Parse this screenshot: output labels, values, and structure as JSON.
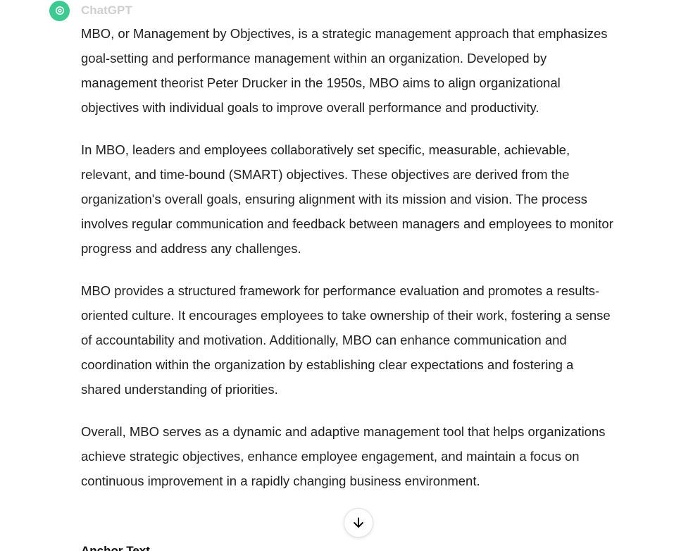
{
  "header": {
    "author": "ChatGPT",
    "avatar_icon": "openai-logo-icon",
    "avatar_color": "#19c37d"
  },
  "message": {
    "paragraphs": [
      "MBO, or Management by Objectives, is a strategic management approach that emphasizes goal-setting and performance management within an organization. Developed by management theorist Peter Drucker in the 1950s, MBO aims to align organizational objectives with individual goals to improve overall performance and productivity.",
      "In MBO, leaders and employees collaboratively set specific, measurable, achievable, relevant, and time-bound (SMART) objectives. These objectives are derived from the organization's overall goals, ensuring alignment with its mission and vision. The process involves regular communication and feedback between managers and employees to monitor progress and address any challenges.",
      "MBO provides a structured framework for performance evaluation and promotes a results-oriented culture. It encourages employees to take ownership of their work, fostering a sense of accountability and motivation. Additionally, MBO can enhance communication and coordination within the organization by establishing clear expectations and fostering a shared understanding of priorities.",
      "Overall, MBO serves as a dynamic and adaptive management tool that helps organizations achieve strategic objectives, enhance employee engagement, and maintain a focus on continuous improvement in a rapidly changing business environment."
    ]
  },
  "scroll_button": {
    "icon": "arrow-down-icon"
  },
  "next_message": {
    "author": "Anchor Text"
  }
}
